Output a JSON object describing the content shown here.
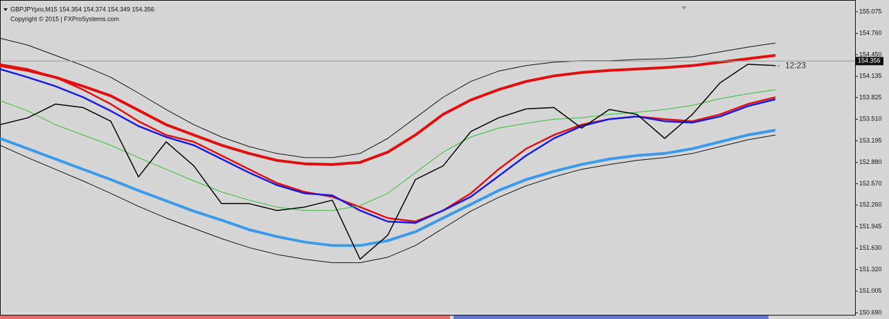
{
  "chart_data": {
    "type": "line",
    "title": "GBPJPYpro,M15 154.354 154.374 154.349 154.356",
    "subtitle": "Copyright © 2015 | FXProSystems.com",
    "current_price": 154.356,
    "countdown": "12:23",
    "ylim": [
      150.66,
      155.246
    ],
    "yticks": [
      155.075,
      {
        "value": 154.76,
        "label": "154.760"
      },
      {
        "value": 154.45,
        "label": "154.450"
      },
      154.135,
      153.825,
      {
        "value": 153.51,
        "label": "153.510"
      },
      153.195,
      {
        "value": 152.88,
        "label": "152.880"
      },
      {
        "value": 152.57,
        "label": "152.570"
      },
      {
        "value": 152.26,
        "label": "152.260"
      },
      151.945,
      {
        "value": 151.63,
        "label": "151.630"
      },
      {
        "value": 151.32,
        "label": "151.320"
      },
      151.005,
      {
        "value": 150.69,
        "label": "150.690"
      }
    ],
    "series": [
      {
        "color": "#111111",
        "width": 1,
        "values": [
          154.69,
          154.59,
          154.44,
          154.29,
          154.12,
          153.89,
          153.65,
          153.43,
          153.25,
          153.11,
          153.01,
          152.95,
          152.95,
          153.01,
          153.23,
          153.53,
          153.83,
          154.06,
          154.21,
          154.29,
          154.34,
          154.36,
          154.36,
          154.38,
          154.39,
          154.42,
          154.49,
          154.56,
          154.62
        ]
      },
      {
        "color": "#e01010",
        "width": 4,
        "values": [
          154.29,
          154.22,
          154.12,
          153.99,
          153.85,
          153.64,
          153.43,
          153.28,
          153.13,
          153.01,
          152.91,
          152.86,
          152.85,
          152.88,
          153.03,
          153.28,
          153.58,
          153.79,
          153.94,
          154.06,
          154.14,
          154.19,
          154.22,
          154.24,
          154.26,
          154.29,
          154.34,
          154.39,
          154.44
        ]
      },
      {
        "color": "#e01010",
        "width": 2.5,
        "values": [
          154.31,
          154.24,
          154.12,
          153.94,
          153.73,
          153.48,
          153.28,
          153.18,
          152.98,
          152.78,
          152.58,
          152.45,
          152.38,
          152.23,
          152.07,
          152.02,
          152.18,
          152.43,
          152.78,
          153.08,
          153.28,
          153.43,
          153.51,
          153.55,
          153.51,
          153.48,
          153.58,
          153.73,
          153.83
        ]
      },
      {
        "color": "#1a1adc",
        "width": 2.5,
        "values": [
          154.24,
          154.12,
          153.99,
          153.83,
          153.63,
          153.41,
          153.25,
          153.13,
          152.93,
          152.73,
          152.55,
          152.43,
          152.4,
          152.18,
          152.02,
          152.0,
          152.18,
          152.38,
          152.68,
          152.98,
          153.23,
          153.41,
          153.51,
          153.55,
          153.48,
          153.46,
          153.55,
          153.7,
          153.8
        ]
      },
      {
        "color": "#2fc02f",
        "width": 1,
        "values": [
          153.78,
          153.63,
          153.43,
          153.28,
          153.13,
          152.95,
          152.78,
          152.61,
          152.45,
          152.33,
          152.23,
          152.18,
          152.18,
          152.25,
          152.43,
          152.73,
          153.03,
          153.25,
          153.38,
          153.45,
          153.51,
          153.53,
          153.58,
          153.61,
          153.65,
          153.71,
          153.81,
          153.88,
          153.94
        ]
      },
      {
        "color": "#3b9be8",
        "width": 4,
        "values": [
          153.23,
          153.08,
          152.93,
          152.78,
          152.63,
          152.47,
          152.32,
          152.17,
          152.04,
          151.9,
          151.8,
          151.72,
          151.67,
          151.67,
          151.74,
          151.87,
          152.07,
          152.27,
          152.47,
          152.63,
          152.75,
          152.85,
          152.93,
          152.98,
          153.01,
          153.08,
          153.18,
          153.28,
          153.35
        ]
      },
      {
        "color": "#111111",
        "width": 1,
        "values": [
          153.13,
          152.95,
          152.78,
          152.61,
          152.43,
          152.24,
          152.07,
          151.92,
          151.77,
          151.64,
          151.54,
          151.47,
          151.42,
          151.42,
          151.5,
          151.67,
          151.92,
          152.17,
          152.37,
          152.54,
          152.67,
          152.78,
          152.85,
          152.91,
          152.95,
          153.01,
          153.11,
          153.21,
          153.28
        ]
      },
      {
        "color": "#000000",
        "width": 1.5,
        "values": [
          153.43,
          153.53,
          153.73,
          153.68,
          153.48,
          152.67,
          153.18,
          152.83,
          152.28,
          152.28,
          152.18,
          152.23,
          152.33,
          151.47,
          151.82,
          152.63,
          152.83,
          153.33,
          153.53,
          153.66,
          153.68,
          153.38,
          153.65,
          153.58,
          153.23,
          153.58,
          154.04,
          154.31,
          154.29
        ]
      }
    ]
  }
}
